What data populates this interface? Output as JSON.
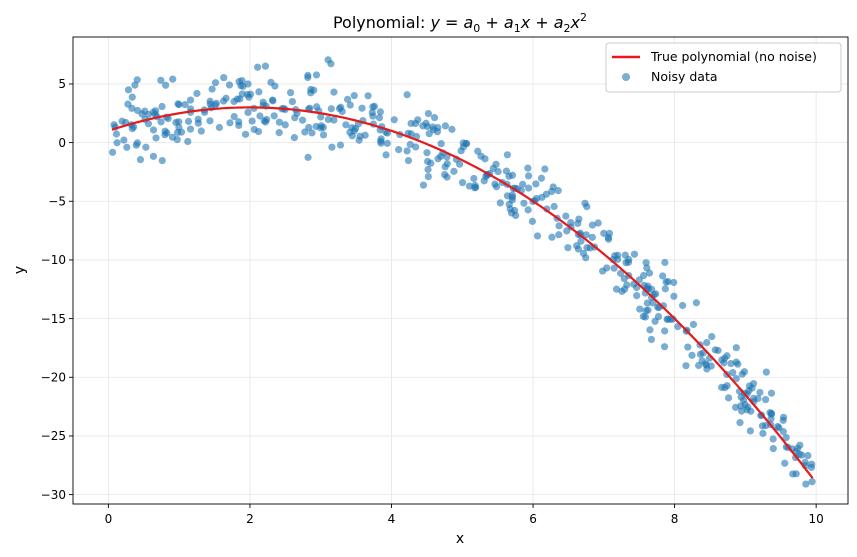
{
  "chart_data": {
    "type": "scatter",
    "title": "Polynomial: y = a₀ + a₁x + a₂x²",
    "title_parts": {
      "prefix": "Polynomial: ",
      "y": "y",
      "eq": " = ",
      "a0": "a",
      "a0_sub": "0",
      "plus1": " + ",
      "a1": "a",
      "a1_sub": "1",
      "x1": "x",
      "plus2": " + ",
      "a2": "a",
      "a2_sub": "2",
      "x2": "x",
      "x2_sup": "2"
    },
    "xlabel": "x",
    "ylabel": "y",
    "xlim": [
      -0.5,
      10.45
    ],
    "ylim": [
      -30.8,
      9.0
    ],
    "xticks": [
      0,
      2,
      4,
      6,
      8,
      10
    ],
    "xtick_labels": [
      "0",
      "2",
      "4",
      "6",
      "8",
      "10"
    ],
    "yticks": [
      -30,
      -25,
      -20,
      -15,
      -10,
      -5,
      0,
      5
    ],
    "ytick_labels": [
      "−30",
      "−25",
      "−20",
      "−15",
      "−10",
      "−5",
      "0",
      "5"
    ],
    "grid": true,
    "legend_position": "top-right",
    "colors": {
      "curve": "#e41a1c",
      "points": "#1f77b4",
      "grid": "#e6e6e6",
      "axis": "#000000"
    },
    "true_polynomial": {
      "name": "True polynomial (no noise)",
      "coefficients": {
        "a0": 1.0,
        "a1": 2.0,
        "a2": -0.5
      },
      "x_range": [
        0.05,
        9.95
      ]
    },
    "noisy_data": {
      "name": "Noisy data",
      "n_points": 500,
      "noise_std": 1.5,
      "x_range": [
        0.05,
        9.95
      ]
    }
  }
}
